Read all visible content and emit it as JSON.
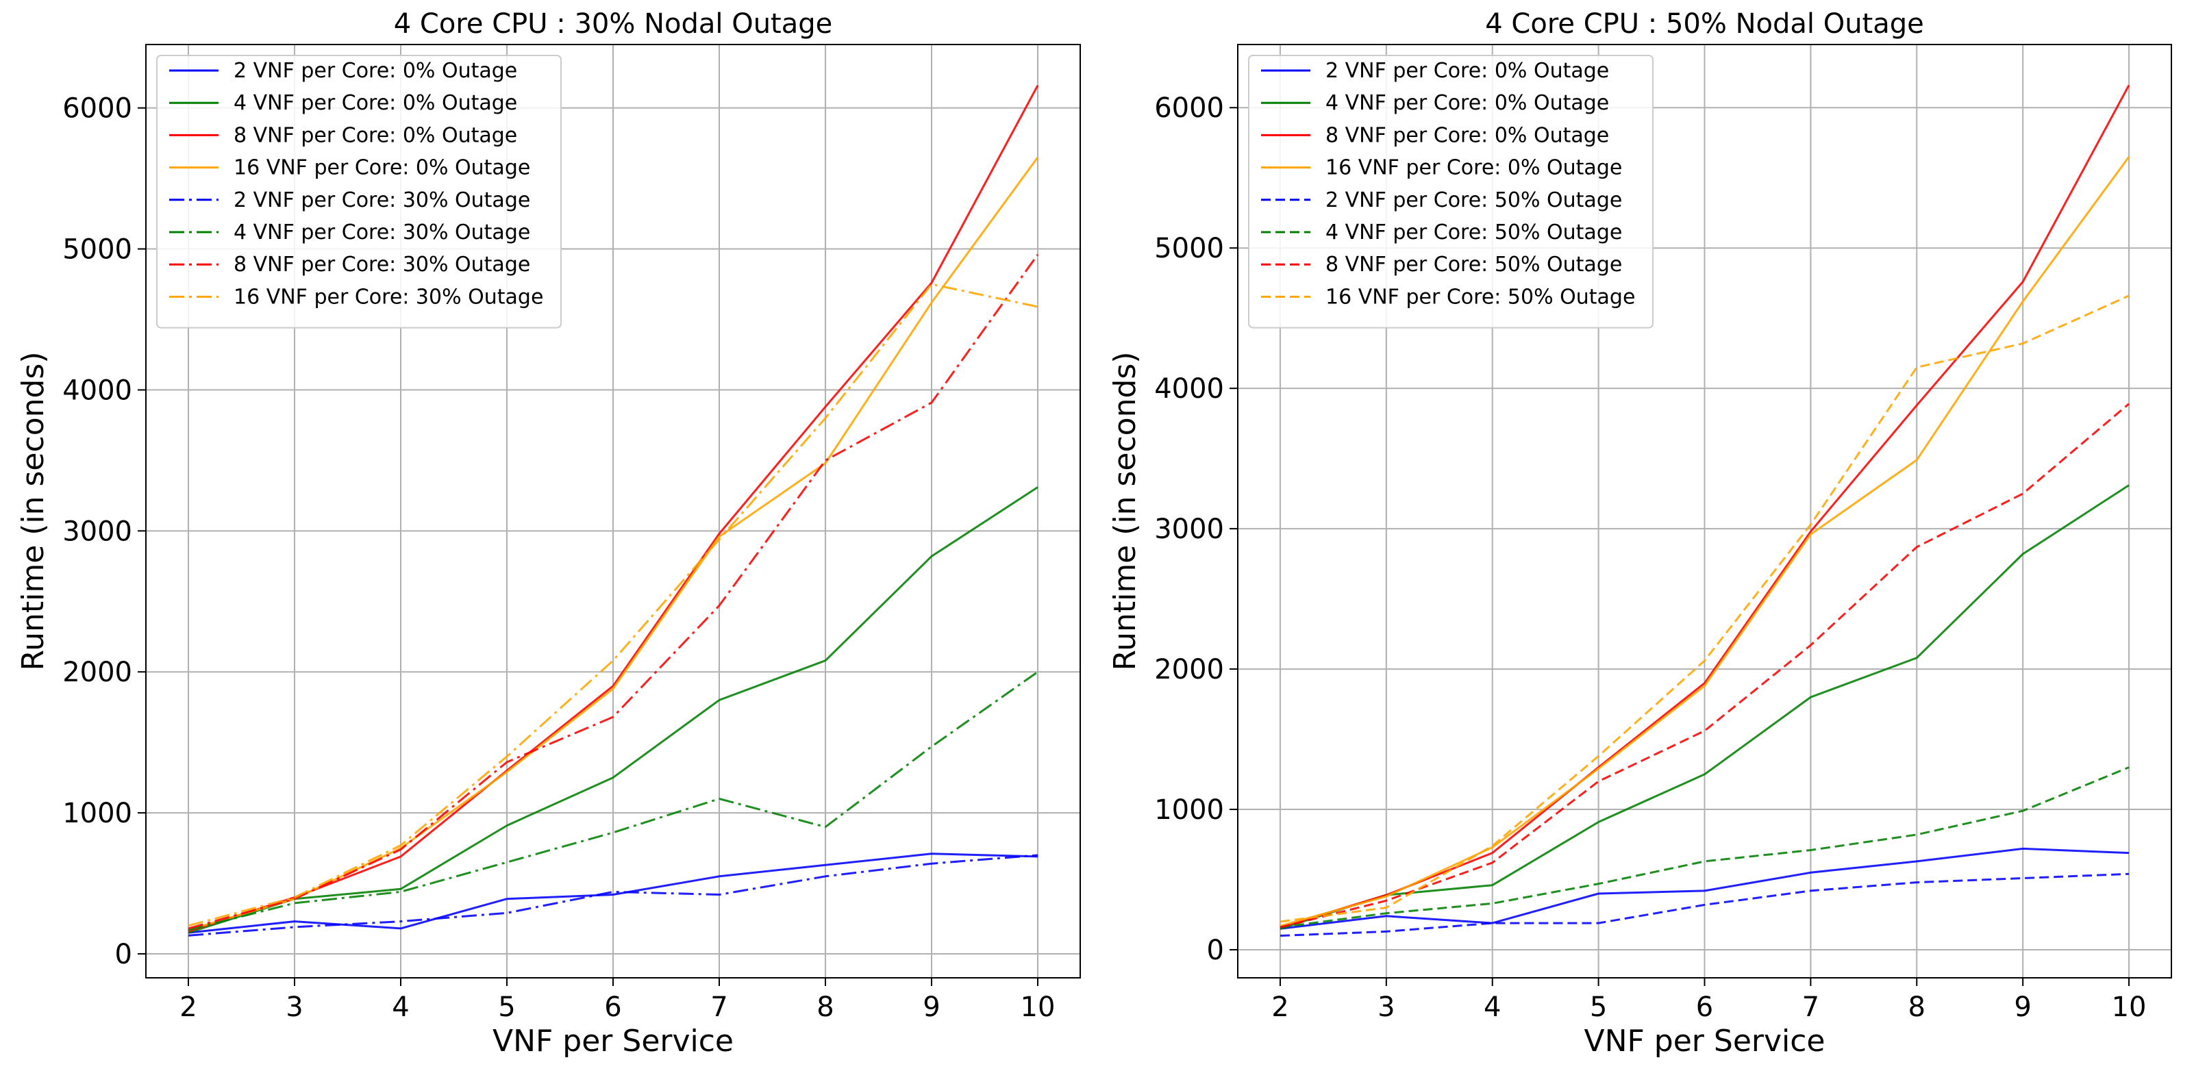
{
  "chart_data": [
    {
      "type": "line",
      "title": "4 Core CPU : 30% Nodal Outage",
      "xlabel": "VNF per Service",
      "ylabel": "Runtime (in seconds)",
      "x": [
        2,
        3,
        4,
        5,
        6,
        7,
        8,
        9,
        10
      ],
      "xlim": [
        1.6,
        10.4
      ],
      "ylim": [
        -170,
        6450
      ],
      "xticks": [
        "2",
        "3",
        "4",
        "5",
        "6",
        "7",
        "8",
        "9",
        "10"
      ],
      "yticks": [
        "0",
        "1000",
        "2000",
        "3000",
        "4000",
        "5000",
        "6000"
      ],
      "grid": true,
      "legend_position": "upper-left",
      "series": [
        {
          "name": "2 VNF per Core: 0% Outage",
          "color": "#0000ff",
          "style": "solid",
          "values": [
            150,
            230,
            180,
            390,
            420,
            550,
            630,
            710,
            690
          ]
        },
        {
          "name": "4 VNF per Core: 0% Outage",
          "color": "#008000",
          "style": "solid",
          "values": [
            150,
            390,
            460,
            910,
            1250,
            1800,
            2080,
            2820,
            3310
          ]
        },
        {
          "name": "8 VNF per Core: 0% Outage",
          "color": "#ff0000",
          "style": "solid",
          "values": [
            160,
            400,
            690,
            1300,
            1900,
            2980,
            3880,
            4760,
            6160
          ]
        },
        {
          "name": "16 VNF per Core: 0% Outage",
          "color": "#ffa500",
          "style": "solid",
          "values": [
            170,
            390,
            750,
            1290,
            1880,
            2960,
            3480,
            4620,
            5650
          ]
        },
        {
          "name": "2 VNF per Core: 30% Outage",
          "color": "#0000ff",
          "style": "dashdot",
          "values": [
            130,
            190,
            230,
            290,
            440,
            420,
            550,
            640,
            700
          ]
        },
        {
          "name": "4 VNF per Core: 30% Outage",
          "color": "#008000",
          "style": "dashdot",
          "values": [
            170,
            360,
            440,
            650,
            860,
            1100,
            900,
            1470,
            2000
          ]
        },
        {
          "name": "8 VNF per Core: 30% Outage",
          "color": "#ff0000",
          "style": "dashdot",
          "values": [
            180,
            390,
            740,
            1360,
            1680,
            2470,
            3500,
            3910,
            4960
          ]
        },
        {
          "name": "16 VNF per Core: 30% Outage",
          "color": "#ffa500",
          "style": "dashdot",
          "values": [
            200,
            400,
            770,
            1400,
            2080,
            2940,
            3800,
            4750,
            4590
          ]
        }
      ]
    },
    {
      "type": "line",
      "title": "4 Core CPU : 50% Nodal Outage",
      "xlabel": "VNF per Service",
      "ylabel": "Runtime (in seconds)",
      "x": [
        2,
        3,
        4,
        5,
        6,
        7,
        8,
        9,
        10
      ],
      "xlim": [
        1.6,
        10.4
      ],
      "ylim": [
        -200,
        6450
      ],
      "xticks": [
        "2",
        "3",
        "4",
        "5",
        "6",
        "7",
        "8",
        "9",
        "10"
      ],
      "yticks": [
        "0",
        "1000",
        "2000",
        "3000",
        "4000",
        "5000",
        "6000"
      ],
      "grid": true,
      "legend_position": "upper-left",
      "series": [
        {
          "name": "2 VNF per Core: 0% Outage",
          "color": "#0000ff",
          "style": "solid",
          "values": [
            150,
            240,
            190,
            400,
            420,
            550,
            630,
            720,
            690
          ]
        },
        {
          "name": "4 VNF per Core: 0% Outage",
          "color": "#008000",
          "style": "solid",
          "values": [
            150,
            390,
            460,
            910,
            1250,
            1800,
            2080,
            2820,
            3310
          ]
        },
        {
          "name": "8 VNF per Core: 0% Outage",
          "color": "#ff0000",
          "style": "solid",
          "values": [
            160,
            390,
            690,
            1300,
            1900,
            2980,
            3880,
            4760,
            6160
          ]
        },
        {
          "name": "16 VNF per Core: 0% Outage",
          "color": "#ffa500",
          "style": "solid",
          "values": [
            170,
            380,
            730,
            1290,
            1880,
            2960,
            3490,
            4620,
            5650
          ]
        },
        {
          "name": "2 VNF per Core: 50% Outage",
          "color": "#0000ff",
          "style": "dashed",
          "values": [
            100,
            130,
            190,
            190,
            320,
            420,
            480,
            510,
            540
          ]
        },
        {
          "name": "4 VNF per Core: 50% Outage",
          "color": "#008000",
          "style": "dashed",
          "values": [
            160,
            260,
            330,
            470,
            630,
            710,
            820,
            990,
            1300
          ]
        },
        {
          "name": "8 VNF per Core: 50% Outage",
          "color": "#ff0000",
          "style": "dashed",
          "values": [
            160,
            350,
            620,
            1200,
            1560,
            2170,
            2870,
            3250,
            3890
          ]
        },
        {
          "name": "16 VNF per Core: 50% Outage",
          "color": "#ffa500",
          "style": "dashed",
          "values": [
            200,
            300,
            740,
            1380,
            2060,
            3030,
            4150,
            4320,
            4660
          ]
        }
      ]
    }
  ]
}
